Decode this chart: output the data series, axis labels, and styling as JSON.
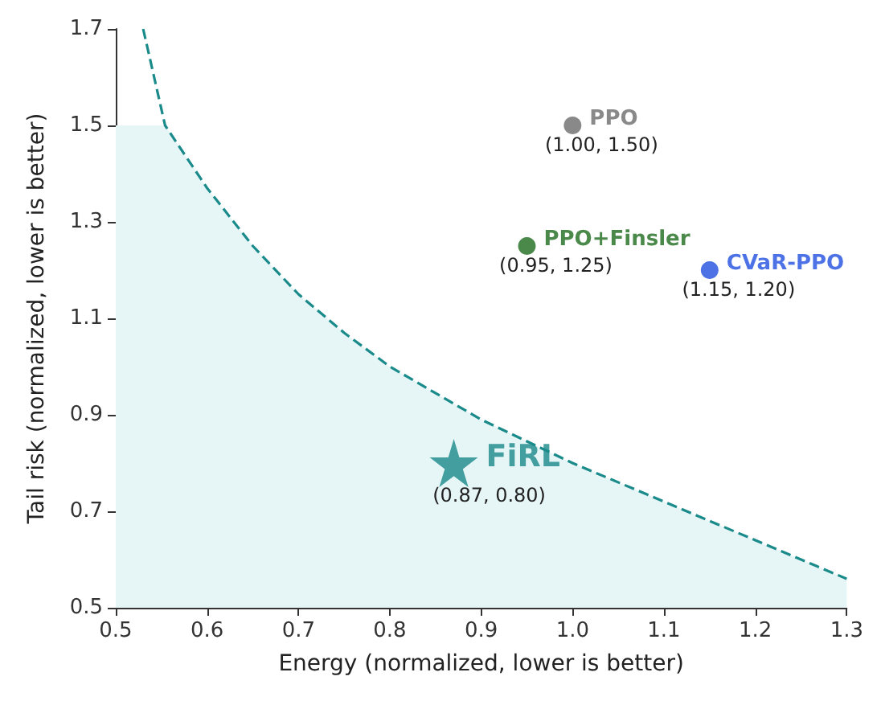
{
  "chart_data": {
    "type": "scatter",
    "xlabel": "Energy (normalized, lower is better)",
    "ylabel": "Tail risk (normalized, lower is better)",
    "xlim": [
      0.5,
      1.3
    ],
    "xticks": [
      0.5,
      0.6,
      0.7,
      0.8,
      0.9,
      {
        "value": 1,
        "label": "1.0"
      },
      1.1,
      1.2,
      1.3
    ],
    "ylim": [
      0.5,
      1.7
    ],
    "yticks": [
      0.5,
      0.7,
      0.9,
      1.1,
      1.3,
      1.5,
      1.7
    ],
    "grid": false,
    "legend": false,
    "series": [
      {
        "type": "area",
        "color": "#e6f5f6",
        "x": [
          0.5,
          0.554,
          0.6,
          0.65,
          0.7,
          0.75,
          0.8,
          0.9,
          1.0,
          1.1,
          1.2,
          1.3
        ],
        "values": [
          1.5,
          1.5,
          1.37,
          1.25,
          1.15,
          1.07,
          1.0,
          0.89,
          0.8,
          0.72,
          0.64,
          0.56
        ]
      },
      {
        "type": "line",
        "color": "#1a8a8a",
        "line_style": "dashed",
        "marker": "none",
        "x": [
          0.53,
          0.554,
          0.6,
          0.65,
          0.7,
          0.75,
          0.8,
          0.9,
          1.0,
          1.1,
          1.2,
          1.3
        ],
        "values": [
          1.7,
          1.5,
          1.37,
          1.25,
          1.15,
          1.07,
          1.0,
          0.89,
          0.8,
          0.72,
          0.64,
          0.56
        ]
      },
      {
        "name": "PPO",
        "color": "#6b6b6b",
        "marker": "circle",
        "x": [
          1.0
        ],
        "values": [
          1.5
        ],
        "value_labels": [
          "(1.00, 1.50)"
        ]
      },
      {
        "name": "PPO+Finsler",
        "color": "#1e6b1e",
        "marker": "circle",
        "x": [
          0.95
        ],
        "values": [
          1.25
        ],
        "value_labels": [
          "(0.95, 1.25)"
        ]
      },
      {
        "name": "CVaR-PPO",
        "color": "#1f4fe0",
        "marker": "circle",
        "x": [
          1.15
        ],
        "values": [
          1.2
        ],
        "value_labels": [
          "(1.15, 1.20)"
        ]
      },
      {
        "name": "FiRL",
        "color": "#1a8a8a",
        "marker": "star",
        "x": [
          0.87
        ],
        "values": [
          0.8
        ],
        "value_labels": [
          "(0.87, 0.80)"
        ]
      }
    ]
  }
}
